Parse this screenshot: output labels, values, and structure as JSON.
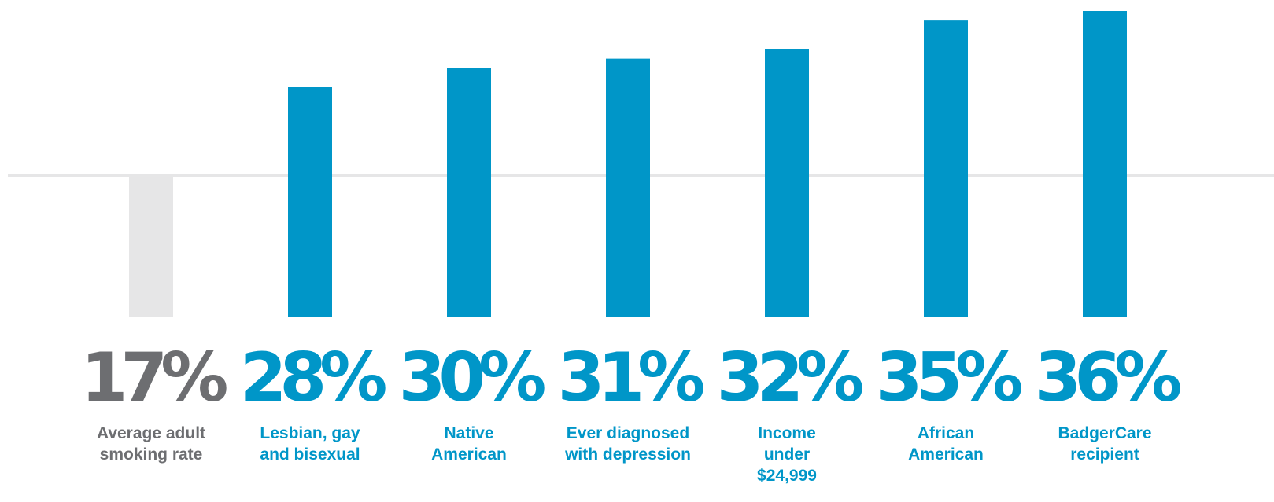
{
  "chart_data": {
    "type": "bar",
    "unit": "%",
    "categories": [
      "Average adult smoking rate",
      "Lesbian, gay and bisexual",
      "Native American",
      "Ever diagnosed with depression",
      "Income under $24,999",
      "African American",
      "BadgerCare recipient"
    ],
    "category_lines": [
      [
        "Average adult",
        "smoking rate"
      ],
      [
        "Lesbian, gay",
        "and bisexual"
      ],
      [
        "Native",
        "American"
      ],
      [
        "Ever diagnosed",
        "with depression"
      ],
      [
        "Income",
        "under",
        "$24,999"
      ],
      [
        "African",
        "American"
      ],
      [
        "BadgerCare",
        "recipient"
      ]
    ],
    "values": [
      17,
      28,
      30,
      31,
      32,
      35,
      36
    ],
    "value_labels": [
      "17%",
      "28%",
      "30%",
      "31%",
      "32%",
      "35%",
      "36%"
    ],
    "reference_line": 17,
    "title": "",
    "xlabel": "",
    "ylabel": "",
    "legend": "none",
    "grid": false,
    "colors": {
      "baseline_bar": "#e6e6e7",
      "baseline_text": "#6d6e71",
      "group_bar": "#0096c8",
      "group_text": "#0096c8",
      "reference_line": "#e6e6e7"
    }
  }
}
